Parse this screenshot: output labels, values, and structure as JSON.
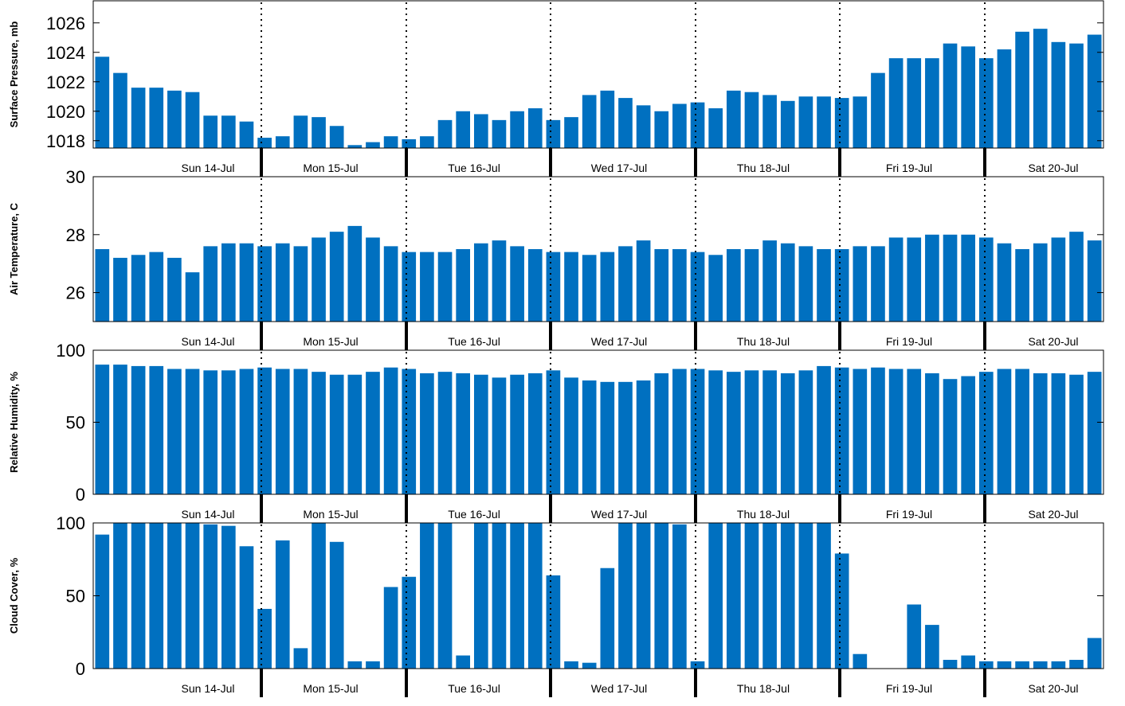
{
  "day_labels": [
    "Sun 14-Jul",
    "Mon 15-Jul",
    "Tue 16-Jul",
    "Wed 17-Jul",
    "Thu 18-Jul",
    "Fri 19-Jul",
    "Sat 20-Jul"
  ],
  "colors": {
    "bar": "#0070c0",
    "axis": "#000000"
  },
  "chart_data": [
    {
      "type": "bar",
      "ylabel": "Surface Pressure, mb",
      "ylim": [
        1017.5,
        1027.5
      ],
      "yticks": [
        1018,
        1020,
        1022,
        1024,
        1026
      ],
      "values": [
        1023.7,
        1022.6,
        1021.6,
        1021.6,
        1021.4,
        1021.3,
        1019.7,
        1019.7,
        1019.3,
        1018.2,
        1018.3,
        1019.7,
        1019.6,
        1019.0,
        1017.7,
        1017.9,
        1018.3,
        1018.1,
        1018.3,
        1019.4,
        1020.0,
        1019.8,
        1019.4,
        1020.0,
        1020.2,
        1019.4,
        1019.6,
        1021.1,
        1021.4,
        1020.9,
        1020.4,
        1020.0,
        1020.5,
        1020.6,
        1020.2,
        1021.4,
        1021.3,
        1021.1,
        1020.7,
        1021.0,
        1021.0,
        1020.9,
        1021.0,
        1022.6,
        1023.6,
        1023.6,
        1023.6,
        1024.6,
        1024.4,
        1023.6,
        1024.2,
        1025.4,
        1025.6,
        1024.7,
        1024.6,
        1025.2
      ],
      "grid": false
    },
    {
      "type": "bar",
      "ylabel": "Air Temperature, C",
      "ylim": [
        25,
        30
      ],
      "yticks": [
        26,
        28,
        30
      ],
      "values": [
        27.5,
        27.2,
        27.3,
        27.4,
        27.2,
        26.7,
        27.6,
        27.7,
        27.7,
        27.6,
        27.7,
        27.6,
        27.9,
        28.1,
        28.3,
        27.9,
        27.6,
        27.4,
        27.4,
        27.4,
        27.5,
        27.7,
        27.8,
        27.6,
        27.5,
        27.4,
        27.4,
        27.3,
        27.4,
        27.6,
        27.8,
        27.5,
        27.5,
        27.4,
        27.3,
        27.5,
        27.5,
        27.8,
        27.7,
        27.6,
        27.5,
        27.5,
        27.6,
        27.6,
        27.9,
        27.9,
        28.0,
        28.0,
        28.0,
        27.9,
        27.7,
        27.5,
        27.7,
        27.9,
        28.1,
        27.8
      ],
      "grid": false
    },
    {
      "type": "bar",
      "ylabel": "Relative Humidity, %",
      "ylim": [
        0,
        100
      ],
      "yticks": [
        0,
        50,
        100
      ],
      "values": [
        90,
        90,
        89,
        89,
        87,
        87,
        86,
        86,
        87,
        88,
        87,
        87,
        85,
        83,
        83,
        85,
        88,
        87,
        84,
        85,
        84,
        83,
        81,
        83,
        84,
        86,
        81,
        79,
        78,
        78,
        79,
        84,
        87,
        87,
        86,
        85,
        86,
        86,
        84,
        86,
        89,
        88,
        87,
        88,
        87,
        87,
        84,
        80,
        82,
        85,
        87,
        87,
        84,
        84,
        83,
        85
      ],
      "grid": false
    },
    {
      "type": "bar",
      "ylabel": "Cloud Cover, %",
      "ylim": [
        0,
        100
      ],
      "yticks": [
        0,
        50,
        100
      ],
      "values": [
        92,
        100,
        100,
        100,
        100,
        100,
        99,
        98,
        84,
        41,
        88,
        14,
        100,
        87,
        5,
        5,
        56,
        63,
        100,
        100,
        9,
        100,
        100,
        100,
        100,
        64,
        5,
        4,
        69,
        100,
        100,
        100,
        99,
        5,
        100,
        100,
        100,
        100,
        100,
        100,
        100,
        79,
        10,
        0,
        0,
        44,
        30,
        6,
        9,
        5,
        5,
        5,
        5,
        5,
        6,
        21
      ],
      "grid": false
    }
  ]
}
